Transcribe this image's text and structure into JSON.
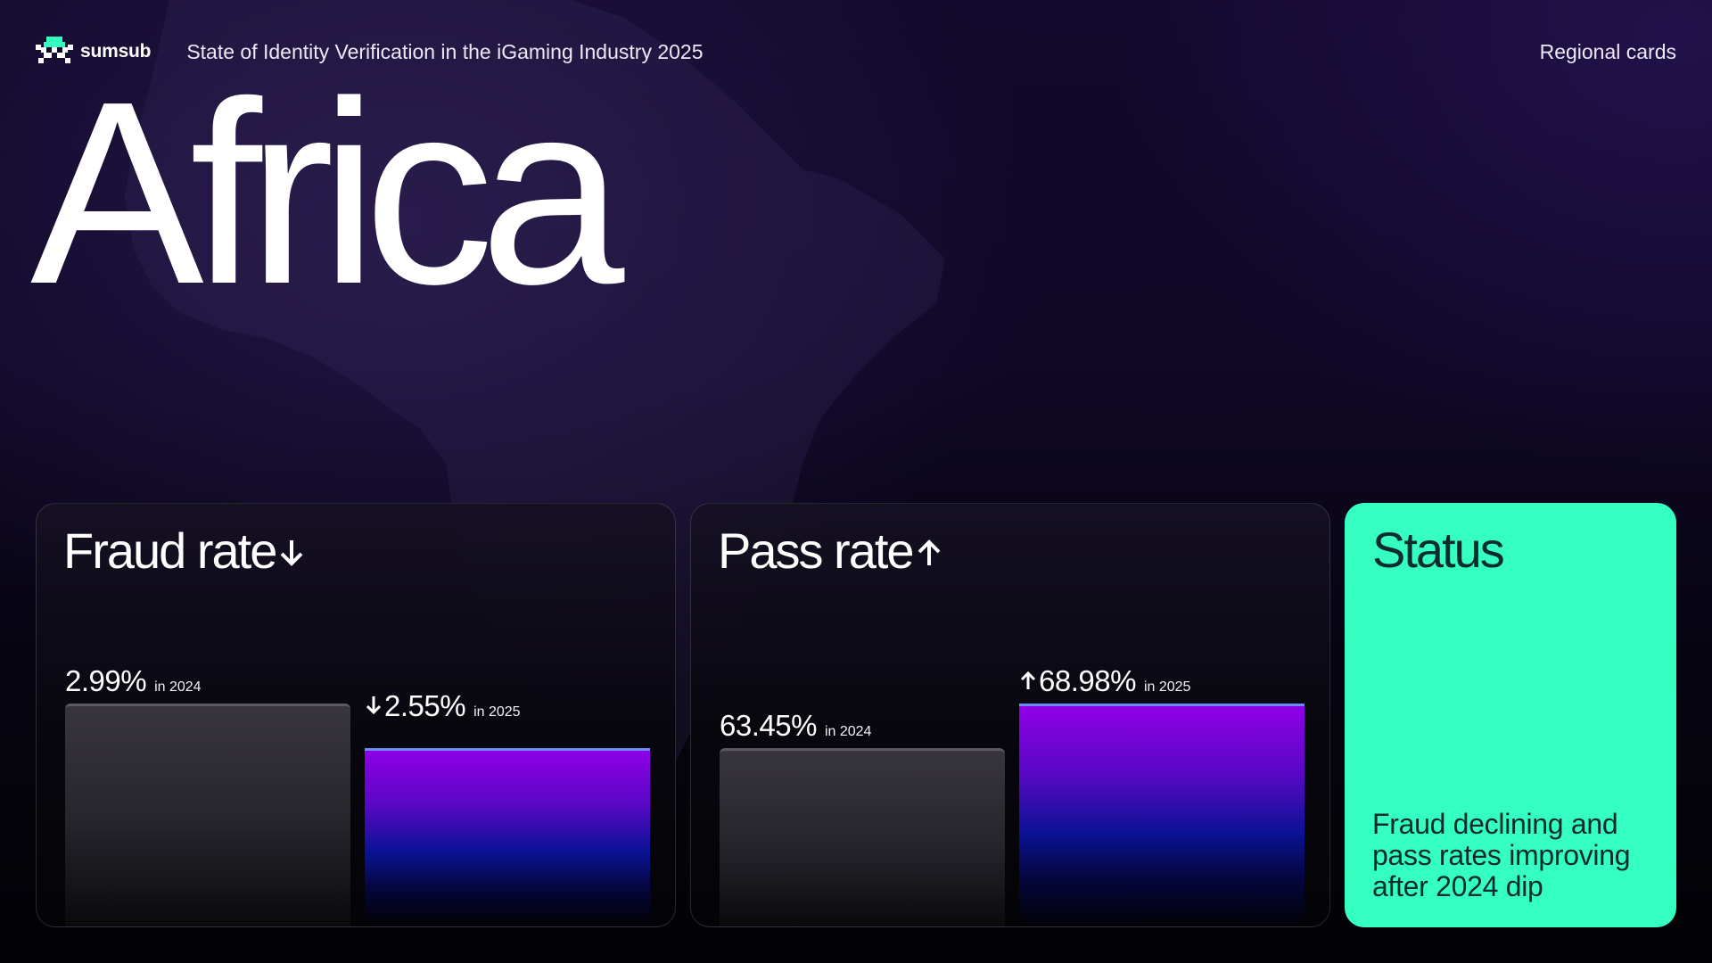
{
  "header": {
    "logo_text": "sumsub",
    "logo_icon": "pixel-invader-icon",
    "report_title": "State of Identity Verification in the iGaming Industry 2025",
    "section_label": "Regional cards"
  },
  "region": {
    "title": "Africa"
  },
  "fraud_card": {
    "title": "Fraud rate",
    "trend_icon": "arrow-down-icon",
    "bars": [
      {
        "value": "2.99%",
        "year_label": "in 2024",
        "trend_icon": ""
      },
      {
        "value": "2.55%",
        "year_label": "in 2025",
        "trend_icon": "arrow-down-icon"
      }
    ]
  },
  "pass_card": {
    "title": "Pass rate",
    "trend_icon": "arrow-up-icon",
    "bars": [
      {
        "value": "63.45%",
        "year_label": "in 2024",
        "trend_icon": ""
      },
      {
        "value": "68.98%",
        "year_label": "in 2025",
        "trend_icon": "arrow-up-icon"
      }
    ]
  },
  "status_card": {
    "title": "Status",
    "text": "Fraud declining and pass rates improving after 2024 dip"
  },
  "chart_data": [
    {
      "type": "bar",
      "title": "Fraud rate",
      "categories": [
        "2024",
        "2025"
      ],
      "values": [
        2.99,
        2.55
      ],
      "unit": "%",
      "trend": "down"
    },
    {
      "type": "bar",
      "title": "Pass rate",
      "categories": [
        "2024",
        "2025"
      ],
      "values": [
        63.45,
        68.98
      ],
      "unit": "%",
      "trend": "up"
    }
  ],
  "colors": {
    "accent_mint": "#34ffc1",
    "bar_new_top": "#8e00e6",
    "bar_new_mid": "#0a1294",
    "bar_old": "#38353e",
    "bar_new_cap": "#6b8cff",
    "background": "#0f0826"
  }
}
